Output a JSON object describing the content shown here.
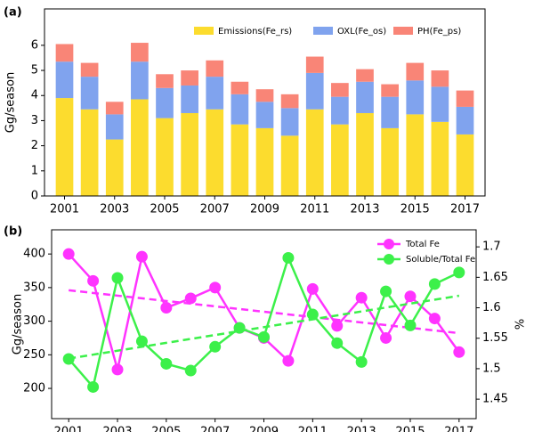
{
  "chart_data": [
    {
      "type": "bar",
      "stacked": true,
      "title": "(a)",
      "ylabel": "Gg/season",
      "x": [
        2001,
        2002,
        2003,
        2004,
        2005,
        2006,
        2007,
        2008,
        2009,
        2010,
        2011,
        2012,
        2013,
        2014,
        2015,
        2016,
        2017
      ],
      "series": [
        {
          "name": "Emissions(Fe_rs)",
          "color": "#fcdc2e",
          "values": [
            3.9,
            3.45,
            2.25,
            3.85,
            3.1,
            3.3,
            3.45,
            2.85,
            2.7,
            2.4,
            3.45,
            2.85,
            3.3,
            2.7,
            3.25,
            2.95,
            2.45
          ]
        },
        {
          "name": "OXL(Fe_os)",
          "color": "#80a3ee",
          "values": [
            1.45,
            1.3,
            1.0,
            1.5,
            1.2,
            1.1,
            1.3,
            1.2,
            1.05,
            1.1,
            1.45,
            1.1,
            1.25,
            1.25,
            1.35,
            1.4,
            1.1
          ]
        },
        {
          "name": "PH(Fe_ps)",
          "color": "#f98577",
          "values": [
            0.7,
            0.55,
            0.5,
            0.75,
            0.55,
            0.6,
            0.65,
            0.5,
            0.5,
            0.55,
            0.65,
            0.55,
            0.5,
            0.5,
            0.7,
            0.65,
            0.65
          ]
        }
      ],
      "xlim": [
        2000.2,
        2017.8
      ],
      "xticks": [
        2001,
        2003,
        2005,
        2007,
        2009,
        2011,
        2013,
        2015,
        2017
      ],
      "ylim": [
        0,
        7.45
      ],
      "yticks": [
        0,
        1,
        2,
        3,
        4,
        5,
        6
      ],
      "legend": "upper right"
    },
    {
      "type": "line",
      "title": "(b)",
      "ylabel": "Gg/season",
      "y2label": "%",
      "trend": true,
      "x": [
        2001,
        2002,
        2003,
        2004,
        2005,
        2006,
        2007,
        2008,
        2009,
        2010,
        2011,
        2012,
        2013,
        2014,
        2015,
        2016,
        2017
      ],
      "series": [
        {
          "name": "Total Fe",
          "color": "#ff33ff",
          "values": [
            400,
            360,
            228,
            396,
            320,
            334,
            350,
            290,
            275,
            241,
            348,
            293,
            335,
            275,
            337,
            304,
            254
          ]
        },
        {
          "name": "Soluble/Total Fe",
          "color": "#3cf04a",
          "axis": "y2",
          "values": [
            1.516,
            1.47,
            1.649,
            1.545,
            1.508,
            1.497,
            1.536,
            1.567,
            1.552,
            1.682,
            1.589,
            1.542,
            1.511,
            1.627,
            1.571,
            1.639,
            1.658
          ]
        }
      ],
      "xlim": [
        2000.3,
        2017.7
      ],
      "xticks": [
        2001,
        2003,
        2005,
        2007,
        2009,
        2011,
        2013,
        2015,
        2017
      ],
      "ylim": [
        155,
        436
      ],
      "yticks": [
        200,
        250,
        300,
        350,
        400
      ],
      "y2lim": [
        1.418,
        1.728
      ],
      "y2ticks": [
        1.45,
        1.5,
        1.55,
        1.6,
        1.65,
        1.7
      ],
      "legend": "upper right"
    }
  ]
}
